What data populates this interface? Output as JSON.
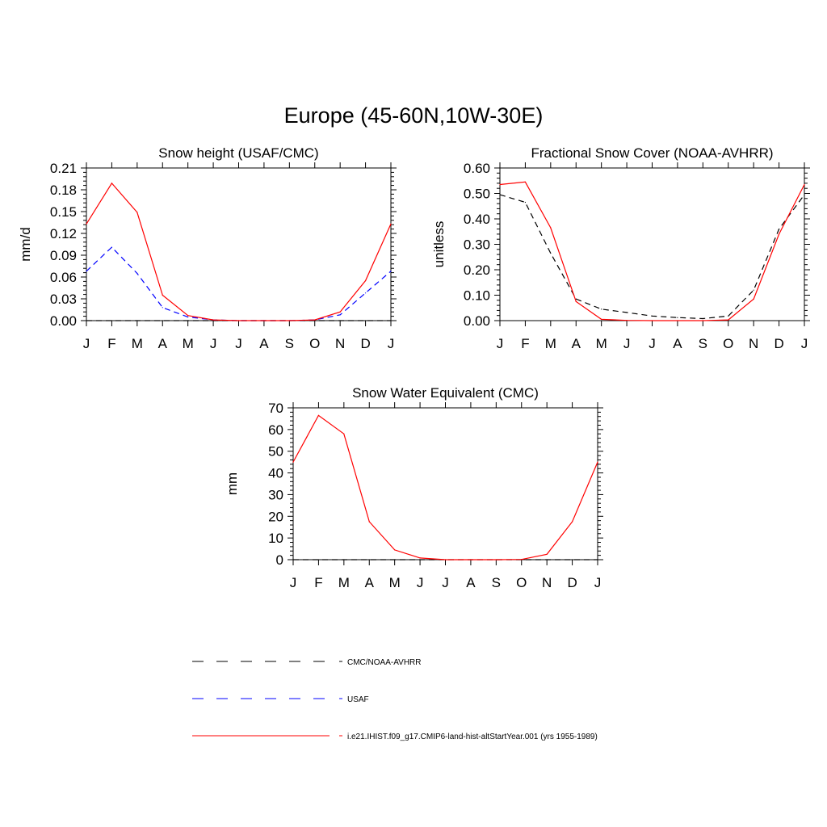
{
  "title": "Europe (45-60N,10W-30E)",
  "colors": {
    "model": "#ff0000",
    "usaf": "#0000ff",
    "obs": "#000000"
  },
  "legend": {
    "items": [
      {
        "label": "CMC/NOAA-AVHRR",
        "color": "#000000",
        "style": "dashed"
      },
      {
        "label": "USAF",
        "color": "#0000ff",
        "style": "dashed"
      },
      {
        "label": "i.e21.IHIST.f09_g17.CMIP6-land-hist-altStartYear.001 (yrs 1955-1989)",
        "color": "#ff0000",
        "style": "solid"
      }
    ]
  },
  "chart_data": [
    {
      "type": "line",
      "title": "Snow height (USAF/CMC)",
      "ylabel": "mm/d",
      "xlabel": "",
      "categories": [
        "J",
        "F",
        "M",
        "A",
        "M",
        "J",
        "J",
        "A",
        "S",
        "O",
        "N",
        "D",
        "J"
      ],
      "ylim": [
        0,
        0.21
      ],
      "yticks": [
        "0.00",
        "0.03",
        "0.06",
        "0.09",
        "0.12",
        "0.15",
        "0.18",
        "0.21"
      ],
      "series": [
        {
          "name": "CMC/NOAA-AVHRR",
          "color": "#000000",
          "style": "dashed",
          "values": [
            0,
            0,
            0,
            0,
            0,
            0,
            0,
            0,
            0,
            0,
            0,
            0,
            0
          ]
        },
        {
          "name": "USAF",
          "color": "#0000ff",
          "style": "dashed",
          "values": [
            0.068,
            0.101,
            0.065,
            0.018,
            0.005,
            0.001,
            0,
            0,
            0,
            0.001,
            0.008,
            0.038,
            0.068
          ]
        },
        {
          "name": "i.e21.IHIST.f09_g17.CMIP6-land-hist-altStartYear.001 (yrs 1955-1989)",
          "color": "#ff0000",
          "style": "solid",
          "values": [
            0.133,
            0.189,
            0.149,
            0.035,
            0.007,
            0.001,
            0,
            0,
            0,
            0.001,
            0.012,
            0.055,
            0.133
          ]
        }
      ]
    },
    {
      "type": "line",
      "title": "Fractional Snow Cover (NOAA-AVHRR)",
      "ylabel": "unitless",
      "xlabel": "",
      "categories": [
        "J",
        "F",
        "M",
        "A",
        "M",
        "J",
        "J",
        "A",
        "S",
        "O",
        "N",
        "D",
        "J"
      ],
      "ylim": [
        0,
        0.6
      ],
      "yticks": [
        "0.00",
        "0.10",
        "0.20",
        "0.30",
        "0.40",
        "0.50",
        "0.60"
      ],
      "series": [
        {
          "name": "CMC/NOAA-AVHRR",
          "color": "#000000",
          "style": "dashed",
          "values": [
            0.495,
            0.465,
            0.265,
            0.085,
            0.045,
            0.032,
            0.018,
            0.012,
            0.008,
            0.018,
            0.12,
            0.36,
            0.495
          ]
        },
        {
          "name": "i.e21.IHIST.f09_g17.CMIP6-land-hist-altStartYear.001 (yrs 1955-1989)",
          "color": "#ff0000",
          "style": "solid",
          "values": [
            0.535,
            0.545,
            0.365,
            0.075,
            0.005,
            0.001,
            0,
            0,
            0,
            0.003,
            0.085,
            0.34,
            0.535
          ]
        }
      ]
    },
    {
      "type": "line",
      "title": "Snow Water Equivalent (CMC)",
      "ylabel": "mm",
      "xlabel": "",
      "categories": [
        "J",
        "F",
        "M",
        "A",
        "M",
        "J",
        "J",
        "A",
        "S",
        "O",
        "N",
        "D",
        "J"
      ],
      "ylim": [
        0,
        70
      ],
      "yticks": [
        "0",
        "10",
        "20",
        "30",
        "40",
        "50",
        "60",
        "70"
      ],
      "series": [
        {
          "name": "CMC/NOAA-AVHRR",
          "color": "#000000",
          "style": "dashed",
          "values": [
            0,
            0,
            0,
            0,
            0,
            0,
            0,
            0,
            0,
            0,
            0,
            0,
            0
          ]
        },
        {
          "name": "i.e21.IHIST.f09_g17.CMIP6-land-hist-altStartYear.001 (yrs 1955-1989)",
          "color": "#ff0000",
          "style": "solid",
          "values": [
            45,
            66.5,
            58,
            17.5,
            4.5,
            0.8,
            0,
            0,
            0,
            0.1,
            2.5,
            17.5,
            45
          ]
        }
      ]
    }
  ]
}
